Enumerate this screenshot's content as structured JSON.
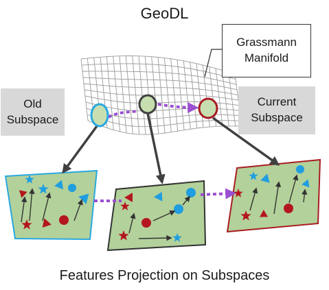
{
  "title": "GeoDL",
  "manifold_label": {
    "line1": "Grassmann",
    "line2": "Manifold"
  },
  "old_label": {
    "line1": "Old",
    "line2": "Subspace"
  },
  "current_label": {
    "line1": "Current",
    "line2": "Subspace"
  },
  "caption": "Features Projection on Subspaces",
  "colors": {
    "old": "#29a8e0",
    "middle": "#404040",
    "current": "#a81c22",
    "dotted_path": "#9b4fd1",
    "plane_fill": "#b3d19a",
    "point_fill": "#c7dfb0",
    "blue_feature": "#1f9ee0",
    "red_feature": "#b3171d",
    "manifold_grid": "#9a9a9a"
  }
}
